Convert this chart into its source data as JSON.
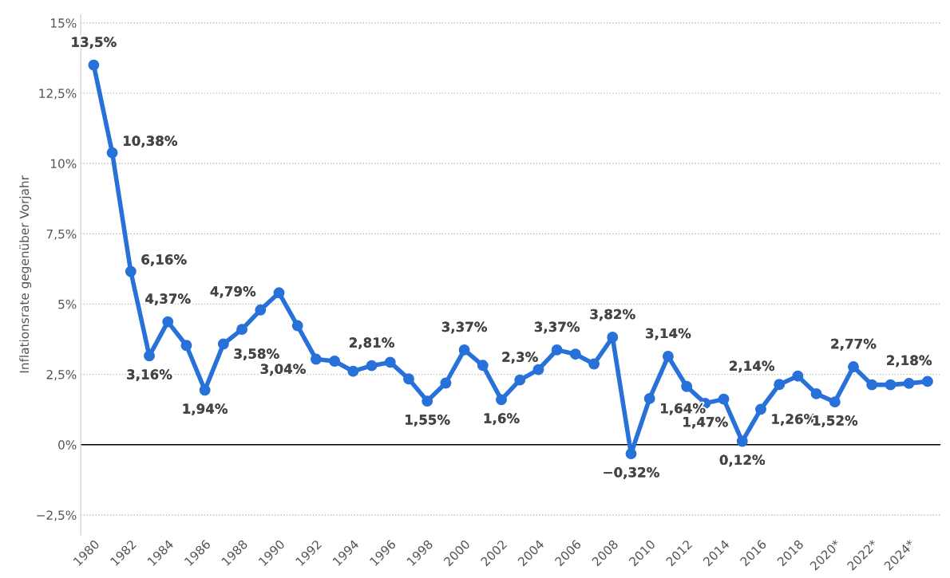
{
  "chart_data": {
    "type": "line",
    "ylabel": "Inflationsrate gegenüber Vorjahr",
    "categories": [
      "1980",
      null,
      "1982",
      null,
      "1984",
      null,
      "1986",
      null,
      "1988",
      null,
      "1990",
      null,
      "1992",
      null,
      "1994",
      null,
      "1996",
      null,
      "1998",
      null,
      "2000",
      null,
      "2002",
      null,
      "2004",
      null,
      "2006",
      null,
      "2008",
      null,
      "2010",
      null,
      "2012",
      null,
      "2014",
      null,
      "2016",
      null,
      "2018",
      null,
      "2020*",
      null,
      "2022*",
      null,
      "2024*",
      null
    ],
    "series": [
      {
        "color": "#2771d9",
        "values": [
          13.5,
          10.38,
          6.16,
          3.16,
          4.37,
          3.53,
          1.94,
          3.58,
          4.1,
          4.79,
          5.4,
          4.23,
          3.04,
          2.97,
          2.61,
          2.81,
          2.93,
          2.34,
          1.55,
          2.19,
          3.37,
          2.82,
          1.6,
          2.3,
          2.67,
          3.37,
          3.22,
          2.87,
          3.82,
          -0.32,
          1.64,
          3.14,
          2.07,
          1.47,
          1.62,
          0.12,
          1.26,
          2.14,
          2.44,
          1.81,
          1.52,
          2.77,
          2.13,
          2.13,
          2.18,
          2.25
        ],
        "value_labels": [
          "13,5%",
          "10,38%",
          "6,16%",
          "3,16%",
          "4,37%",
          null,
          "1,94%",
          "3,58%",
          null,
          "4,79%",
          null,
          null,
          "3,04%",
          null,
          null,
          "2,81%",
          null,
          null,
          "1,55%",
          null,
          "3,37%",
          null,
          "1,6%",
          "2,3%",
          null,
          "3,37%",
          null,
          null,
          "3,82%",
          "−0,32%",
          "1,64%",
          "3,14%",
          null,
          "1,47%",
          null,
          "0,12%",
          "1,26%",
          "2,14%",
          null,
          null,
          "1,52%",
          "2,77%",
          null,
          null,
          "2,18%",
          null
        ]
      }
    ],
    "ylim": [
      -3.2,
      15.3
    ],
    "yticks": [
      {
        "value": -2.5,
        "label": "−2,5%"
      },
      {
        "value": 0,
        "label": "0%"
      },
      {
        "value": 2.5,
        "label": "2,5%"
      },
      {
        "value": 5,
        "label": "5%"
      },
      {
        "value": 7.5,
        "label": "7,5%"
      },
      {
        "value": 10,
        "label": "10%"
      },
      {
        "value": 12.5,
        "label": "12,5%"
      },
      {
        "value": 15,
        "label": "15%"
      }
    ],
    "ref_lines": [
      {
        "axis": "y",
        "value": 0,
        "color": "#000000"
      }
    ],
    "grid": "y",
    "marker": "circle",
    "line_style": "solid"
  }
}
